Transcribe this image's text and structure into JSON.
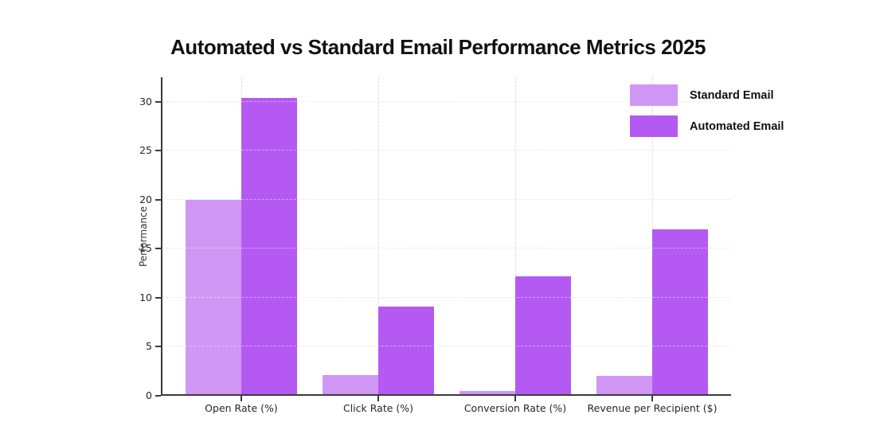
{
  "title": "Automated vs Standard Email Performance Metrics 2025",
  "chart_data": {
    "type": "bar",
    "title": "Automated vs Standard Email Performance Metrics 2025",
    "categories": [
      "Open Rate (%)",
      "Click Rate (%)",
      "Conversion Rate (%)",
      "Revenue per Recipient ($)"
    ],
    "series": [
      {
        "name": "Standard Email",
        "color": "#d096f4",
        "values": [
          20.0,
          2.1,
          0.5,
          2.0
        ]
      },
      {
        "name": "Automated Email",
        "color": "#b45af3",
        "values": [
          30.4,
          9.1,
          12.2,
          17.0
        ]
      }
    ],
    "xlabel": "",
    "ylabel": "Performance",
    "ylim": [
      0,
      32.5
    ],
    "yticks": [
      0,
      5,
      10,
      15,
      20,
      25,
      30
    ],
    "grid": true,
    "grid_style": "dashed",
    "legend_position": "upper right",
    "colors": {
      "spine": "#3b3b3b",
      "gridline": "#dcdcdc",
      "tick_text": "#262626",
      "title_text": "#111111",
      "background": "#ffffff"
    }
  }
}
